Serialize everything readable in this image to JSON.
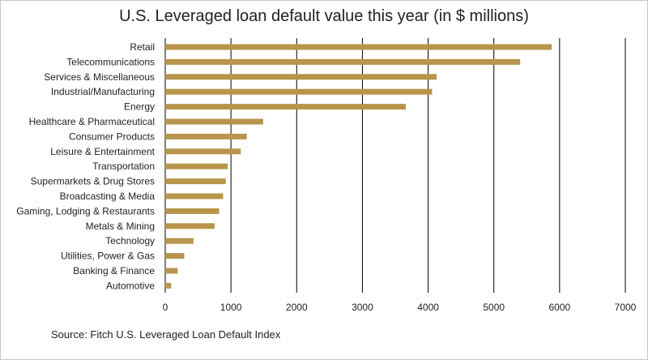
{
  "chart_data": {
    "type": "bar",
    "orientation": "horizontal",
    "title": "U.S. Leveraged loan  default value this year (in $ millions)",
    "source": "Source: Fitch U.S. Leveraged Loan Default Index",
    "categories": [
      "Retail",
      "Telecommunications",
      "Services & Miscellaneous",
      "Industrial/Manufacturing",
      "Energy",
      "Healthcare & Pharmaceutical",
      "Consumer Products",
      "Leisure & Entertainment",
      "Transportation",
      "Supermarkets & Drug Stores",
      "Broadcasting & Media",
      "Gaming, Lodging & Restaurants",
      "Metals & Mining",
      "Technology",
      "Utilities, Power & Gas",
      "Banking & Finance",
      "Automotive"
    ],
    "values": [
      5880,
      5400,
      4130,
      4060,
      3660,
      1490,
      1240,
      1150,
      950,
      920,
      880,
      820,
      750,
      430,
      290,
      190,
      90
    ],
    "xlim": [
      0,
      7000
    ],
    "xticks": [
      0,
      1000,
      2000,
      3000,
      4000,
      5000,
      6000,
      7000
    ],
    "grid": true,
    "colors": {
      "bar": "#b8954a",
      "grid": "#000000"
    }
  }
}
